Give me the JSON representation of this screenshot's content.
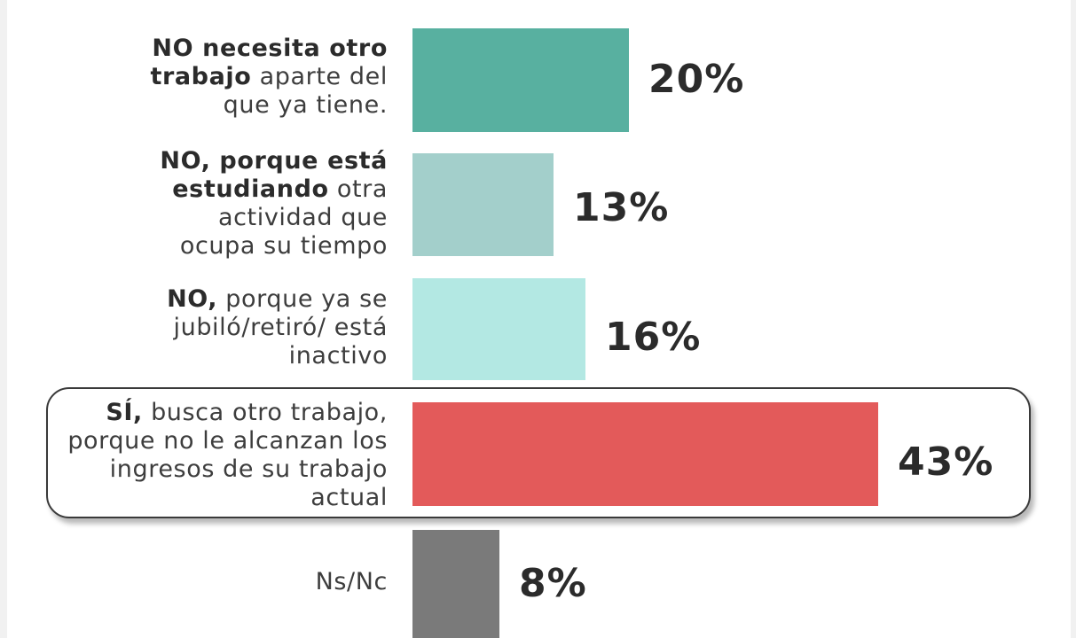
{
  "chart_data": {
    "type": "bar",
    "orientation": "horizontal",
    "unit": "%",
    "bars": [
      {
        "label_bold": "NO necesita otro trabajo",
        "label_rest": "aparte del que ya tiene.",
        "value": 20,
        "value_label": "20%",
        "color": "#58b0a0"
      },
      {
        "label_bold": "NO, porque está estudiando",
        "label_rest": "otra actividad que ocupa su tiempo",
        "value": 13,
        "value_label": "13%",
        "color": "#a3cfcb"
      },
      {
        "label_bold": "NO,",
        "label_rest": "porque ya se jubiló/retiró/ está inactivo",
        "value": 16,
        "value_label": "16%",
        "color": "#b3e8e3"
      },
      {
        "label_bold": "SÍ,",
        "label_rest": "busca otro trabajo, porque no le alcanzan los ingresos de su trabajo actual",
        "value": 43,
        "value_label": "43%",
        "color": "#e35a5a",
        "highlighted": true
      },
      {
        "label_bold": "",
        "label_rest": "Ns/Nc",
        "value": 8,
        "value_label": "8%",
        "color": "#7a7a7a"
      }
    ]
  }
}
